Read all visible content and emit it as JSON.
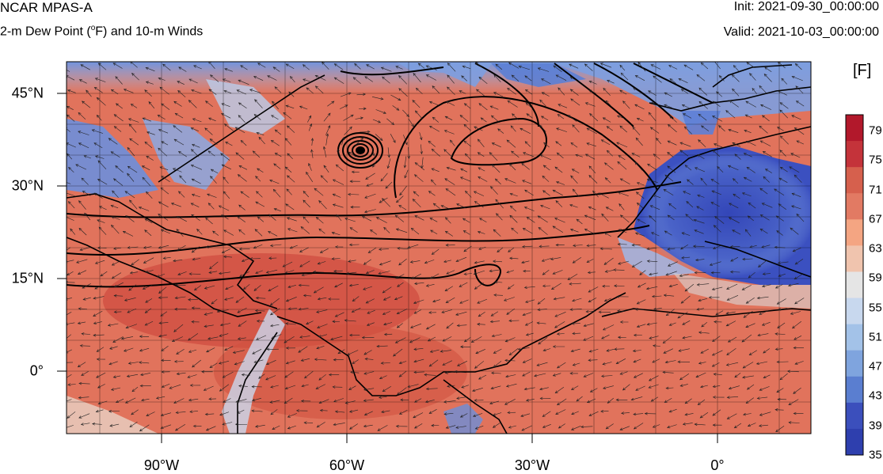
{
  "header": {
    "model_title": "NCAR MPAS-A",
    "field_title": "2-m Dew Point (°F) and 10-m Winds",
    "init": "Init: 2021-09-30_00:00:00",
    "valid": "Valid: 2021-10-03_00:00:00"
  },
  "colorbar": {
    "units": "[F]",
    "ticks": [
      "79",
      "75",
      "71",
      "67",
      "63",
      "59",
      "55",
      "51",
      "47",
      "43",
      "39",
      "35"
    ],
    "colors": [
      "#b2182b",
      "#c4333a",
      "#d6604d",
      "#e27a63",
      "#f4a582",
      "#f0c4ae",
      "#e5e5e5",
      "#c8d8ee",
      "#a3c2e8",
      "#7fa4de",
      "#5a7ed0",
      "#3b4fbc",
      "#2e3fae"
    ]
  },
  "axes": {
    "lat_labels": [
      "45°N",
      "30°N",
      "15°N",
      "0°"
    ],
    "lon_labels": [
      "90°W",
      "60°W",
      "30°W",
      "0°"
    ]
  },
  "map": {
    "field": "2-m dew point",
    "overlay": "10-m wind vectors and pressure contours",
    "ocean_color": "#e0705a",
    "cold_color": "#3a50c0"
  }
}
